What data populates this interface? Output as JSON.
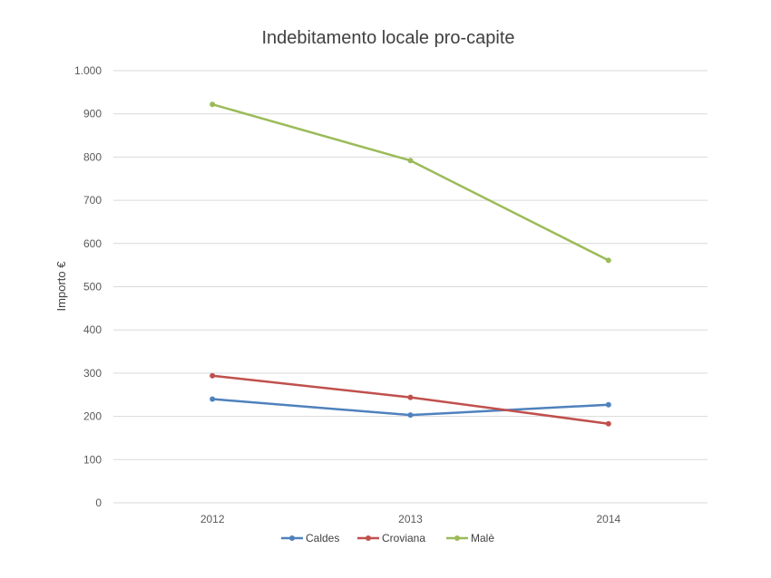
{
  "chart_data": {
    "type": "line",
    "title": "Indebitamento locale pro-capite",
    "xlabel": "",
    "ylabel": "Importo €",
    "categories": [
      "2012",
      "2013",
      "2014"
    ],
    "ylim": [
      0,
      1000
    ],
    "y_ticks": [
      0,
      100,
      200,
      300,
      400,
      500,
      600,
      700,
      800,
      900,
      1000
    ],
    "y_tick_labels": [
      "0",
      "100",
      "200",
      "300",
      "400",
      "500",
      "600",
      "700",
      "800",
      "900",
      "1.000"
    ],
    "grid": true,
    "legend_position": "bottom",
    "series": [
      {
        "name": "Caldes",
        "color": "#4f81bd",
        "values": [
          240,
          203,
          227
        ]
      },
      {
        "name": "Croviana",
        "color": "#c0504d",
        "values": [
          294,
          244,
          183
        ]
      },
      {
        "name": "Malè",
        "color": "#9bbb59",
        "values": [
          922,
          792,
          561
        ]
      }
    ]
  }
}
